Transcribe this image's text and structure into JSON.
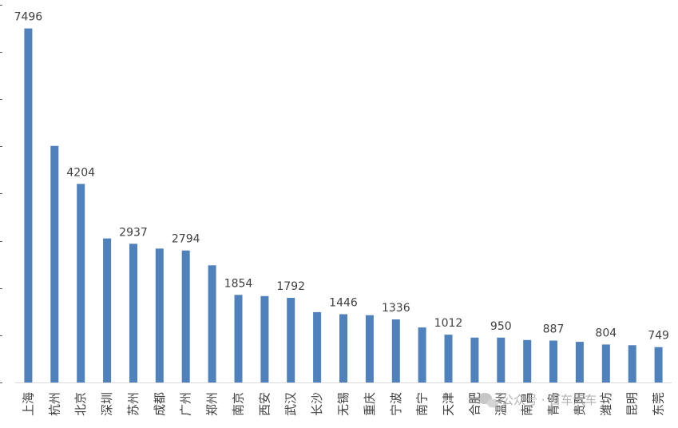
{
  "chart_data": {
    "type": "bar",
    "title": "",
    "xlabel": "",
    "ylabel": "",
    "ylim": [
      0,
      8200
    ],
    "grid": false,
    "legend": "none",
    "bar_color": "#4f81bd",
    "categories": [
      "上海",
      "杭州",
      "北京",
      "深圳",
      "苏州",
      "成都",
      "广州",
      "郑州",
      "南京",
      "西安",
      "武汉",
      "长沙",
      "无锡",
      "重庆",
      "宁波",
      "南宁",
      "天津",
      "合肥",
      "温州",
      "南昌",
      "青岛",
      "贵阳",
      "潍坊",
      "昆明",
      "东莞"
    ],
    "values": [
      7496,
      5010,
      4204,
      3050,
      2937,
      2835,
      2794,
      2480,
      1854,
      1830,
      1792,
      1490,
      1446,
      1425,
      1336,
      1165,
      1012,
      950,
      950,
      900,
      887,
      860,
      804,
      790,
      749
    ],
    "data_labels": [
      {
        "index": 0,
        "text": "7496"
      },
      {
        "index": 2,
        "text": "4204"
      },
      {
        "index": 4,
        "text": "2937"
      },
      {
        "index": 6,
        "text": "2794"
      },
      {
        "index": 8,
        "text": "1854"
      },
      {
        "index": 10,
        "text": "1792"
      },
      {
        "index": 12,
        "text": "1446"
      },
      {
        "index": 14,
        "text": "1336"
      },
      {
        "index": 16,
        "text": "1012"
      },
      {
        "index": 18,
        "text": "950"
      },
      {
        "index": 20,
        "text": "887"
      },
      {
        "index": 22,
        "text": "804"
      },
      {
        "index": 24,
        "text": "749"
      }
    ]
  },
  "watermark": {
    "text": "公众号 · 百车汽车",
    "icon": "wechat-bubble-icon"
  }
}
